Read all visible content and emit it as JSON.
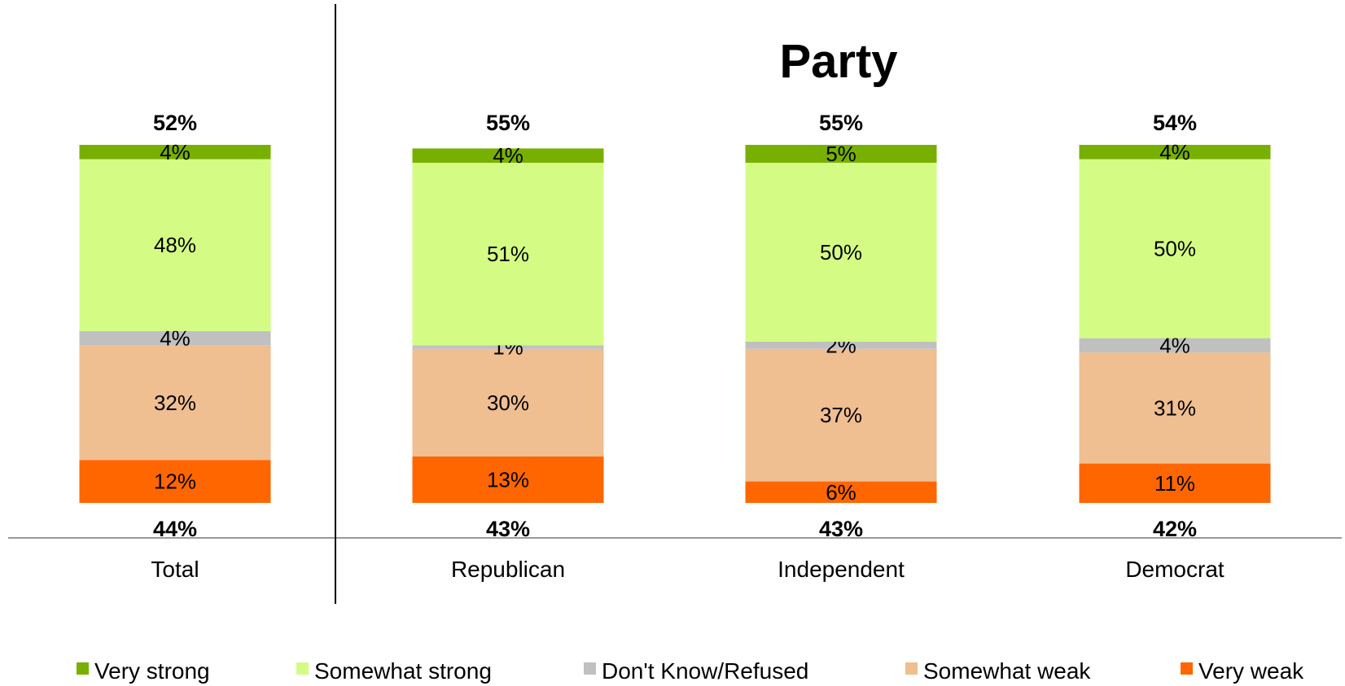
{
  "chart_data": {
    "type": "bar",
    "stacked": true,
    "title": "Party",
    "categories": [
      "Total",
      "Republican",
      "Independent",
      "Democrat"
    ],
    "series": [
      {
        "name": "Very weak",
        "color": "#ff6600",
        "values": [
          12,
          13,
          6,
          11
        ]
      },
      {
        "name": "Somewhat weak",
        "color": "#efbe91",
        "values": [
          32,
          30,
          37,
          31
        ]
      },
      {
        "name": "Don't Know/Refused",
        "color": "#c0c0c0",
        "values": [
          4,
          1,
          2,
          4
        ]
      },
      {
        "name": "Somewhat strong",
        "color": "#d4fc84",
        "values": [
          48,
          51,
          50,
          50
        ]
      },
      {
        "name": "Very strong",
        "color": "#77b000",
        "values": [
          4,
          4,
          5,
          4
        ]
      }
    ],
    "segment_labels": [
      [
        "12%",
        "32%",
        "4%",
        "48%",
        "4%"
      ],
      [
        "13%",
        "30%",
        "1%",
        "51%",
        "4%"
      ],
      [
        "6%",
        "37%",
        "2%",
        "50%",
        "5%"
      ],
      [
        "11%",
        "31%",
        "4%",
        "50%",
        "4%"
      ]
    ],
    "top_totals": [
      "52%",
      "55%",
      "55%",
      "54%"
    ],
    "bottom_totals": [
      "44%",
      "43%",
      "43%",
      "42%"
    ],
    "legend": {
      "position": "bottom",
      "entries": [
        "Very strong",
        "Somewhat strong",
        "Don't Know/Refused",
        "Somewhat weak",
        "Very weak"
      ]
    },
    "ylim": [
      0,
      100
    ],
    "grid": false
  }
}
